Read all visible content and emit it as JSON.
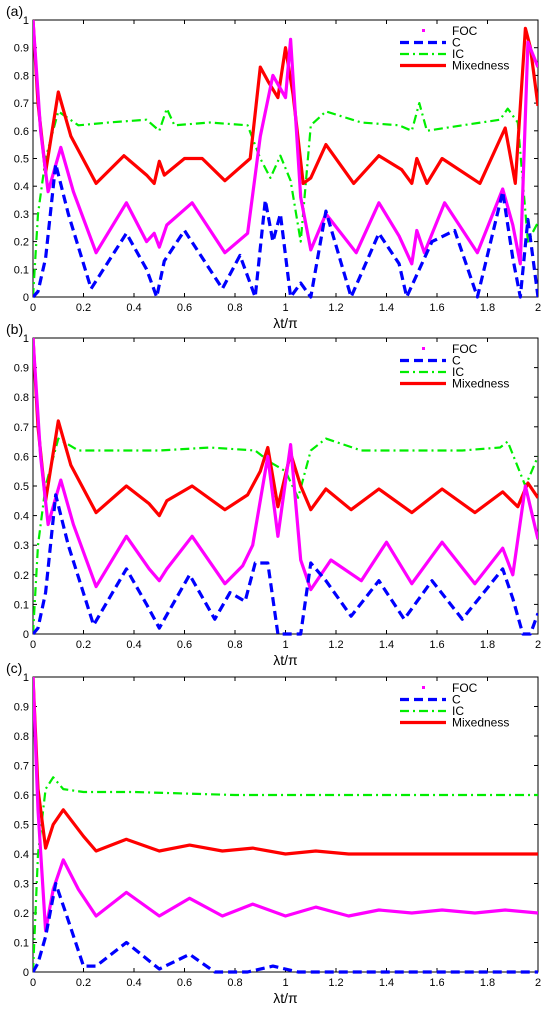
{
  "chart_data": [
    {
      "type": "line",
      "panel_label": "(a)",
      "xlabel": "λt/π",
      "ylabel": "",
      "xlim": [
        0,
        2
      ],
      "ylim": [
        0,
        1
      ],
      "xticks": [
        "0",
        "0.2",
        "0.4",
        "0.6",
        "0.8",
        "1",
        "1.2",
        "1.4",
        "1.6",
        "1.8",
        "2"
      ],
      "yticks": [
        "0",
        "0.1",
        "0.2",
        "0.3",
        "0.4",
        "0.5",
        "0.6",
        "0.7",
        "0.8",
        "0.9",
        "1"
      ],
      "legend_position": "top-right",
      "grid": false,
      "series": [
        {
          "name": "FOC",
          "color": "#ff00ff",
          "style": "solid",
          "x": [
            0,
            0.03,
            0.06,
            0.11,
            0.16,
            0.25,
            0.37,
            0.45,
            0.48,
            0.5,
            0.53,
            0.63,
            0.76,
            0.85,
            0.9,
            0.95,
            1.0,
            1.02,
            1.06,
            1.1,
            1.16,
            1.28,
            1.37,
            1.45,
            1.5,
            1.52,
            1.55,
            1.63,
            1.76,
            1.86,
            1.9,
            1.93,
            1.96,
            2.0
          ],
          "values": [
            1.0,
            0.6,
            0.38,
            0.54,
            0.38,
            0.16,
            0.34,
            0.2,
            0.23,
            0.18,
            0.26,
            0.34,
            0.16,
            0.23,
            0.58,
            0.8,
            0.72,
            0.93,
            0.36,
            0.17,
            0.3,
            0.16,
            0.34,
            0.22,
            0.12,
            0.24,
            0.16,
            0.34,
            0.16,
            0.39,
            0.26,
            0.12,
            0.92,
            0.83
          ]
        },
        {
          "name": "C",
          "color": "#0000ff",
          "style": "dashed",
          "x": [
            0,
            0.02,
            0.05,
            0.09,
            0.14,
            0.23,
            0.37,
            0.45,
            0.49,
            0.52,
            0.6,
            0.75,
            0.82,
            0.88,
            0.92,
            0.95,
            0.98,
            1.02,
            1.06,
            1.1,
            1.16,
            1.26,
            1.37,
            1.45,
            1.48,
            1.52,
            1.58,
            1.67,
            1.76,
            1.86,
            1.9,
            1.93,
            1.96,
            2.0
          ],
          "values": [
            0,
            0.02,
            0.14,
            0.48,
            0.3,
            0.03,
            0.23,
            0.1,
            0.0,
            0.13,
            0.24,
            0.03,
            0.15,
            0.0,
            0.35,
            0.2,
            0.3,
            0.0,
            0.05,
            0.0,
            0.31,
            0.0,
            0.23,
            0.12,
            0.0,
            0.08,
            0.2,
            0.24,
            0.0,
            0.38,
            0.14,
            0.0,
            0.28,
            0.0
          ]
        },
        {
          "name": "IC",
          "color": "#00ee00",
          "style": "dashdot",
          "x": [
            0,
            0.02,
            0.05,
            0.1,
            0.18,
            0.3,
            0.45,
            0.5,
            0.53,
            0.56,
            0.7,
            0.85,
            0.9,
            0.94,
            0.98,
            1.02,
            1.06,
            1.1,
            1.16,
            1.3,
            1.45,
            1.5,
            1.53,
            1.56,
            1.7,
            1.85,
            1.88,
            1.92,
            1.96,
            2.0
          ],
          "values": [
            0,
            0.3,
            0.5,
            0.67,
            0.62,
            0.63,
            0.64,
            0.6,
            0.68,
            0.62,
            0.63,
            0.62,
            0.5,
            0.43,
            0.51,
            0.42,
            0.2,
            0.62,
            0.67,
            0.63,
            0.62,
            0.6,
            0.7,
            0.6,
            0.62,
            0.64,
            0.68,
            0.63,
            0.2,
            0.27
          ]
        },
        {
          "name": "Mixedness",
          "color": "#ff0000",
          "style": "solid",
          "x": [
            0,
            0.02,
            0.05,
            0.1,
            0.15,
            0.25,
            0.36,
            0.45,
            0.48,
            0.5,
            0.52,
            0.6,
            0.67,
            0.76,
            0.86,
            0.9,
            0.93,
            0.97,
            1.0,
            1.03,
            1.07,
            1.1,
            1.16,
            1.27,
            1.37,
            1.46,
            1.5,
            1.52,
            1.56,
            1.62,
            1.77,
            1.87,
            1.91,
            1.95,
            1.97,
            2.0
          ],
          "values": [
            1.0,
            0.7,
            0.45,
            0.74,
            0.58,
            0.41,
            0.51,
            0.44,
            0.41,
            0.49,
            0.44,
            0.5,
            0.5,
            0.42,
            0.5,
            0.83,
            0.78,
            0.72,
            0.9,
            0.73,
            0.41,
            0.43,
            0.55,
            0.41,
            0.51,
            0.46,
            0.41,
            0.5,
            0.41,
            0.5,
            0.41,
            0.61,
            0.41,
            0.97,
            0.9,
            0.69
          ]
        }
      ]
    },
    {
      "type": "line",
      "panel_label": "(b)",
      "xlabel": "λt/π",
      "ylabel": "",
      "xlim": [
        0,
        2
      ],
      "ylim": [
        0,
        1
      ],
      "xticks": [
        "0",
        "0.2",
        "0.4",
        "0.6",
        "0.8",
        "1",
        "1.2",
        "1.4",
        "1.6",
        "1.8",
        "2"
      ],
      "yticks": [
        "0",
        "0.1",
        "0.2",
        "0.3",
        "0.4",
        "0.5",
        "0.6",
        "0.7",
        "0.8",
        "0.9",
        "1"
      ],
      "legend_position": "top-right",
      "grid": false,
      "series": [
        {
          "name": "FOC",
          "color": "#ff00ff",
          "style": "solid",
          "x": [
            0,
            0.03,
            0.06,
            0.11,
            0.16,
            0.25,
            0.37,
            0.46,
            0.5,
            0.53,
            0.63,
            0.76,
            0.83,
            0.87,
            0.93,
            0.97,
            1.02,
            1.06,
            1.1,
            1.18,
            1.3,
            1.4,
            1.5,
            1.62,
            1.75,
            1.86,
            1.9,
            1.95,
            2.0
          ],
          "values": [
            1.0,
            0.6,
            0.37,
            0.52,
            0.37,
            0.16,
            0.33,
            0.22,
            0.18,
            0.22,
            0.33,
            0.17,
            0.23,
            0.3,
            0.6,
            0.33,
            0.64,
            0.25,
            0.15,
            0.25,
            0.18,
            0.31,
            0.17,
            0.31,
            0.17,
            0.29,
            0.2,
            0.5,
            0.32
          ]
        },
        {
          "name": "C",
          "color": "#0000ff",
          "style": "dashed",
          "x": [
            0,
            0.02,
            0.05,
            0.09,
            0.14,
            0.24,
            0.37,
            0.45,
            0.5,
            0.62,
            0.72,
            0.78,
            0.84,
            0.88,
            0.93,
            0.97,
            1.02,
            1.06,
            1.1,
            1.16,
            1.26,
            1.37,
            1.47,
            1.58,
            1.7,
            1.86,
            1.9,
            1.94,
            1.97,
            2.0
          ],
          "values": [
            0,
            0.02,
            0.14,
            0.47,
            0.3,
            0.03,
            0.22,
            0.1,
            0.02,
            0.2,
            0.05,
            0.14,
            0.11,
            0.24,
            0.24,
            0.0,
            0.0,
            0.0,
            0.24,
            0.18,
            0.06,
            0.18,
            0.05,
            0.18,
            0.05,
            0.22,
            0.12,
            0.0,
            0.0,
            0.07
          ]
        },
        {
          "name": "IC",
          "color": "#00ee00",
          "style": "dashdot",
          "x": [
            0,
            0.02,
            0.05,
            0.1,
            0.18,
            0.3,
            0.5,
            0.7,
            0.88,
            0.94,
            1.0,
            1.05,
            1.1,
            1.16,
            1.3,
            1.5,
            1.7,
            1.85,
            1.88,
            1.95,
            2.0
          ],
          "values": [
            0,
            0.3,
            0.5,
            0.66,
            0.62,
            0.62,
            0.62,
            0.63,
            0.62,
            0.58,
            0.55,
            0.46,
            0.62,
            0.66,
            0.62,
            0.62,
            0.62,
            0.63,
            0.65,
            0.5,
            0.6
          ]
        },
        {
          "name": "Mixedness",
          "color": "#ff0000",
          "style": "solid",
          "x": [
            0,
            0.02,
            0.05,
            0.1,
            0.15,
            0.25,
            0.37,
            0.46,
            0.5,
            0.53,
            0.63,
            0.76,
            0.85,
            0.9,
            0.93,
            0.97,
            1.02,
            1.06,
            1.1,
            1.16,
            1.26,
            1.37,
            1.5,
            1.62,
            1.75,
            1.86,
            1.92,
            1.96,
            2.0
          ],
          "values": [
            1.0,
            0.7,
            0.45,
            0.72,
            0.57,
            0.41,
            0.5,
            0.44,
            0.4,
            0.45,
            0.5,
            0.42,
            0.47,
            0.55,
            0.63,
            0.43,
            0.61,
            0.5,
            0.42,
            0.49,
            0.42,
            0.49,
            0.41,
            0.49,
            0.41,
            0.48,
            0.43,
            0.51,
            0.46
          ]
        }
      ]
    },
    {
      "type": "line",
      "panel_label": "(c)",
      "xlabel": "λt/π",
      "ylabel": "",
      "xlim": [
        0,
        2
      ],
      "ylim": [
        0,
        1
      ],
      "xticks": [
        "0",
        "0.2",
        "0.4",
        "0.6",
        "0.8",
        "1",
        "1.2",
        "1.4",
        "1.6",
        "1.8",
        "2"
      ],
      "yticks": [
        "0",
        "0.1",
        "0.2",
        "0.3",
        "0.4",
        "0.5",
        "0.6",
        "0.7",
        "0.8",
        "0.9",
        "1"
      ],
      "legend_position": "top-right",
      "grid": false,
      "series": [
        {
          "name": "FOC",
          "color": "#ff00ff",
          "style": "solid",
          "x": [
            0,
            0.02,
            0.05,
            0.08,
            0.12,
            0.18,
            0.25,
            0.37,
            0.5,
            0.62,
            0.75,
            0.87,
            1.0,
            1.12,
            1.25,
            1.37,
            1.5,
            1.62,
            1.75,
            1.87,
            2.0
          ],
          "values": [
            1.0,
            0.55,
            0.14,
            0.28,
            0.38,
            0.28,
            0.19,
            0.27,
            0.19,
            0.25,
            0.19,
            0.23,
            0.19,
            0.22,
            0.19,
            0.21,
            0.2,
            0.21,
            0.2,
            0.21,
            0.2
          ]
        },
        {
          "name": "C",
          "color": "#0000ff",
          "style": "dashed",
          "x": [
            0,
            0.02,
            0.05,
            0.09,
            0.13,
            0.2,
            0.25,
            0.37,
            0.5,
            0.62,
            0.72,
            0.85,
            0.95,
            1.05,
            1.2,
            1.5,
            1.8,
            2.0
          ],
          "values": [
            0,
            0.03,
            0.12,
            0.3,
            0.2,
            0.02,
            0.02,
            0.1,
            0.01,
            0.06,
            0.0,
            0.0,
            0.02,
            0.0,
            0.0,
            0.0,
            0.0,
            0.0
          ]
        },
        {
          "name": "IC",
          "color": "#00ee00",
          "style": "dashdot",
          "x": [
            0,
            0.02,
            0.05,
            0.08,
            0.12,
            0.2,
            0.4,
            0.8,
            1.2,
            1.6,
            2.0
          ],
          "values": [
            0,
            0.4,
            0.62,
            0.66,
            0.62,
            0.61,
            0.61,
            0.6,
            0.6,
            0.6,
            0.6
          ]
        },
        {
          "name": "Mixedness",
          "color": "#ff0000",
          "style": "solid",
          "x": [
            0,
            0.02,
            0.05,
            0.08,
            0.12,
            0.2,
            0.25,
            0.37,
            0.5,
            0.62,
            0.75,
            0.87,
            1.0,
            1.12,
            1.25,
            1.37,
            1.5,
            1.62,
            1.75,
            1.87,
            2.0
          ],
          "values": [
            1.0,
            0.62,
            0.42,
            0.5,
            0.55,
            0.46,
            0.41,
            0.45,
            0.41,
            0.43,
            0.41,
            0.42,
            0.4,
            0.41,
            0.4,
            0.4,
            0.4,
            0.4,
            0.4,
            0.4,
            0.4
          ]
        }
      ]
    }
  ]
}
